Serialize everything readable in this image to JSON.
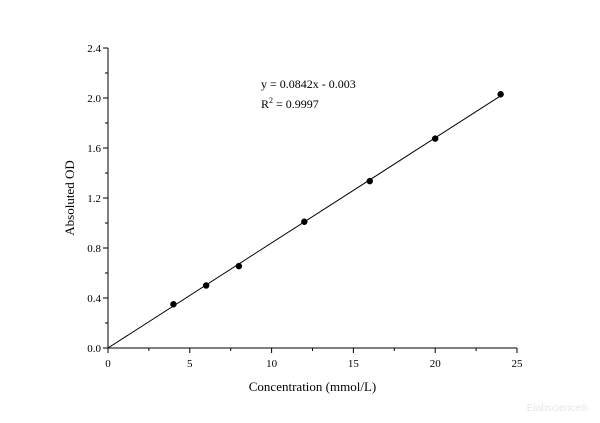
{
  "chart_data": {
    "type": "scatter",
    "title": "",
    "xlabel": "Concentration (mmol/L)",
    "ylabel": "Absoluted OD",
    "xlim": [
      0,
      25
    ],
    "ylim": [
      0,
      2.4
    ],
    "x_ticks": [
      0,
      5,
      10,
      15,
      20,
      25
    ],
    "y_ticks": [
      0.0,
      0.4,
      0.8,
      1.2,
      1.6,
      2.0,
      2.4
    ],
    "x_tick_labels": [
      "0",
      "5",
      "10",
      "15",
      "20",
      "25"
    ],
    "y_tick_labels": [
      "0.0",
      "0.4",
      "0.8",
      "1.2",
      "1.6",
      "2.0",
      "2.4"
    ],
    "grid": false,
    "legend": "none",
    "series": [
      {
        "x": [
          4,
          6,
          8,
          12,
          16,
          20,
          24
        ],
        "y": [
          0.35,
          0.5,
          0.655,
          1.01,
          1.335,
          1.675,
          2.03
        ],
        "marker": "circle",
        "color": "#000000"
      }
    ],
    "fit_line": {
      "slope": 0.0842,
      "intercept": -0.003,
      "x_range": [
        0,
        24
      ],
      "color": "#000000"
    },
    "annotations": {
      "equation": "y = 0.0842x - 0.003",
      "r2_prefix": "R",
      "r2_superscript": "2",
      "r2_value": " = 0.9997"
    }
  },
  "watermark": "Elabscience®"
}
